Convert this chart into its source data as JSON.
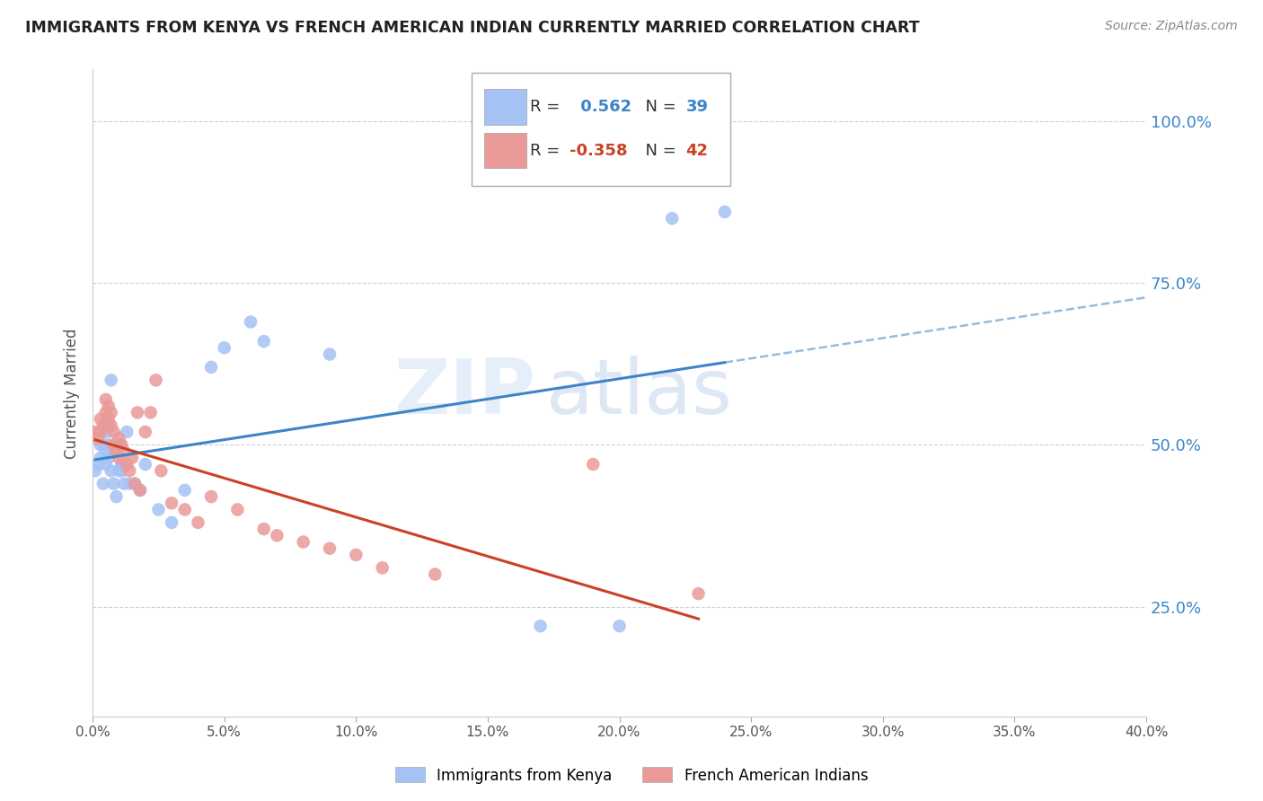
{
  "title": "IMMIGRANTS FROM KENYA VS FRENCH AMERICAN INDIAN CURRENTLY MARRIED CORRELATION CHART",
  "source": "Source: ZipAtlas.com",
  "ylabel": "Currently Married",
  "yticks": [
    0.25,
    0.5,
    0.75,
    1.0
  ],
  "ytick_labels": [
    "25.0%",
    "50.0%",
    "75.0%",
    "100.0%"
  ],
  "xlim": [
    0.0,
    0.4
  ],
  "ylim": [
    0.08,
    1.08
  ],
  "xtick_positions": [
    0.0,
    0.05,
    0.1,
    0.15,
    0.2,
    0.25,
    0.3,
    0.35,
    0.4
  ],
  "kenya_R": 0.562,
  "kenya_N": 39,
  "french_R": -0.358,
  "french_N": 42,
  "kenya_color": "#a4c2f4",
  "french_color": "#ea9999",
  "kenya_line_color": "#3d85c8",
  "french_line_color": "#cc4125",
  "watermark_zip": "ZIP",
  "watermark_atlas": "atlas",
  "kenya_x": [
    0.001,
    0.002,
    0.003,
    0.003,
    0.004,
    0.004,
    0.005,
    0.005,
    0.005,
    0.006,
    0.006,
    0.006,
    0.007,
    0.007,
    0.008,
    0.008,
    0.009,
    0.01,
    0.01,
    0.011,
    0.011,
    0.012,
    0.013,
    0.014,
    0.016,
    0.018,
    0.02,
    0.025,
    0.03,
    0.035,
    0.045,
    0.05,
    0.06,
    0.065,
    0.09,
    0.17,
    0.2,
    0.22,
    0.24
  ],
  "kenya_y": [
    0.46,
    0.47,
    0.48,
    0.5,
    0.44,
    0.5,
    0.47,
    0.49,
    0.52,
    0.5,
    0.48,
    0.53,
    0.46,
    0.6,
    0.44,
    0.49,
    0.42,
    0.46,
    0.5,
    0.47,
    0.46,
    0.44,
    0.52,
    0.44,
    0.44,
    0.43,
    0.47,
    0.4,
    0.38,
    0.43,
    0.62,
    0.65,
    0.69,
    0.66,
    0.64,
    0.22,
    0.22,
    0.85,
    0.86
  ],
  "french_x": [
    0.001,
    0.002,
    0.003,
    0.003,
    0.004,
    0.005,
    0.005,
    0.006,
    0.006,
    0.007,
    0.007,
    0.008,
    0.008,
    0.009,
    0.01,
    0.01,
    0.011,
    0.012,
    0.013,
    0.014,
    0.015,
    0.016,
    0.017,
    0.018,
    0.02,
    0.022,
    0.024,
    0.026,
    0.03,
    0.035,
    0.04,
    0.045,
    0.055,
    0.065,
    0.07,
    0.08,
    0.09,
    0.1,
    0.11,
    0.13,
    0.19,
    0.23
  ],
  "french_y": [
    0.52,
    0.51,
    0.54,
    0.52,
    0.53,
    0.57,
    0.55,
    0.56,
    0.54,
    0.55,
    0.53,
    0.5,
    0.52,
    0.49,
    0.51,
    0.48,
    0.5,
    0.49,
    0.47,
    0.46,
    0.48,
    0.44,
    0.55,
    0.43,
    0.52,
    0.55,
    0.6,
    0.46,
    0.41,
    0.4,
    0.38,
    0.42,
    0.4,
    0.37,
    0.36,
    0.35,
    0.34,
    0.33,
    0.31,
    0.3,
    0.47,
    0.27
  ],
  "background_color": "#ffffff",
  "grid_color": "#d0d0d0"
}
